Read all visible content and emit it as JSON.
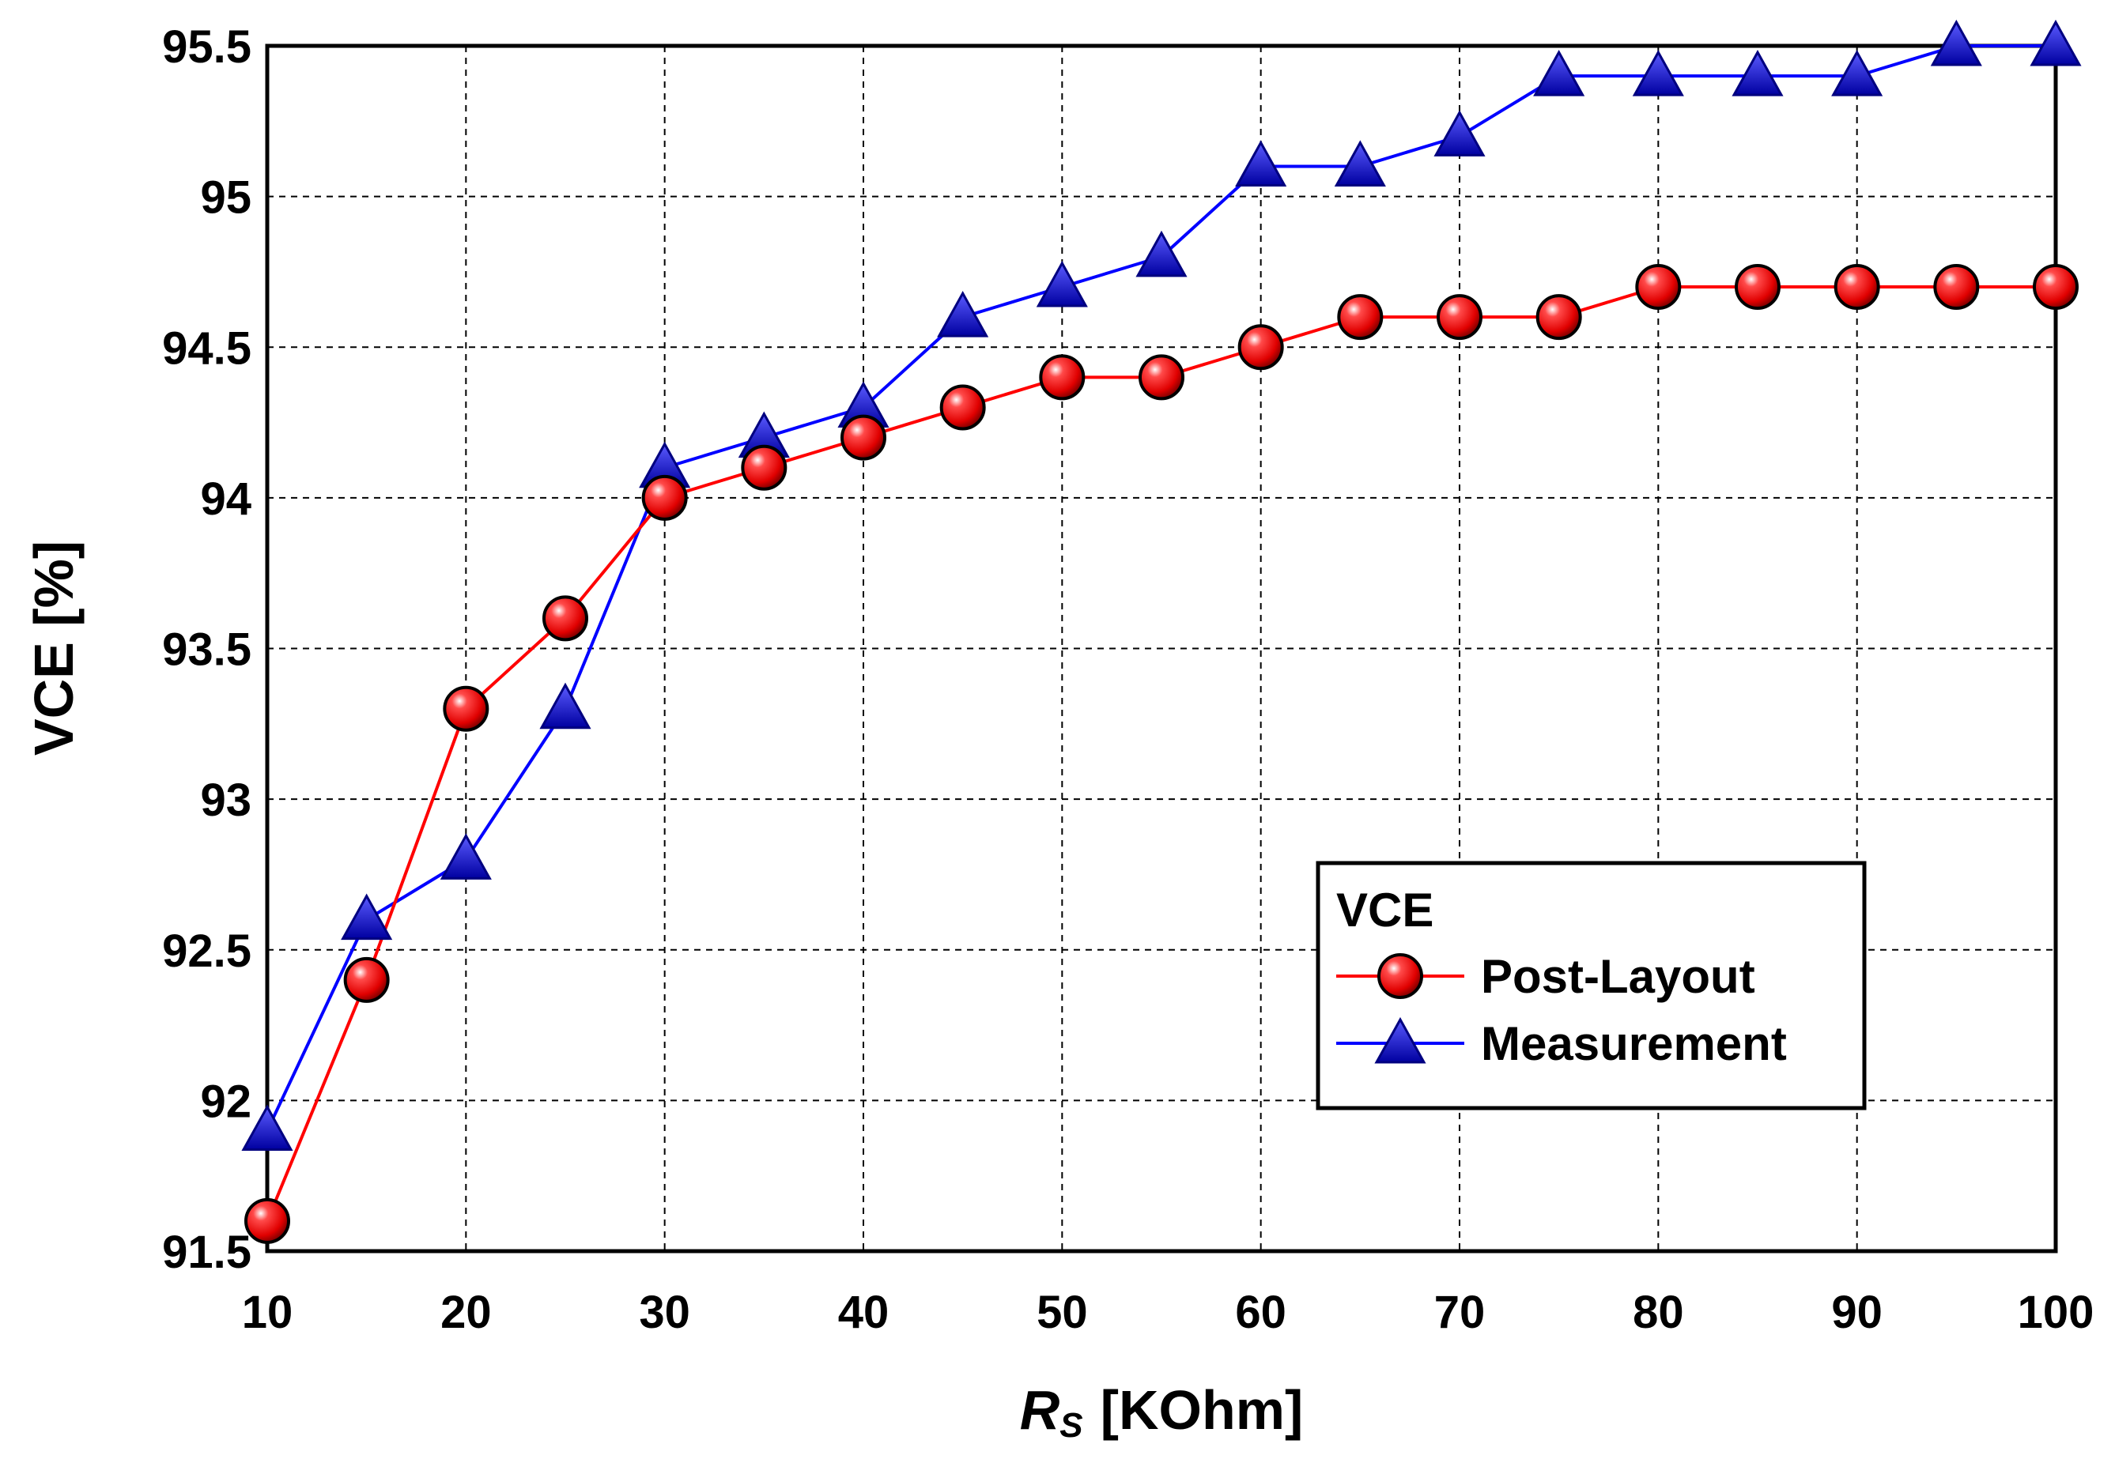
{
  "chart_data": {
    "type": "line",
    "xlabel_symbol": "R",
    "xlabel_subscript": "S",
    "xlabel_unit": "[KOhm]",
    "ylabel": "VCE [%]",
    "xlim": [
      10,
      100
    ],
    "ylim": [
      91.5,
      95.5
    ],
    "grid": true,
    "x_ticks": [
      10,
      20,
      30,
      40,
      50,
      60,
      70,
      80,
      90,
      100
    ],
    "x_tick_labels": [
      "10",
      "20",
      "30",
      "40",
      "50",
      "60",
      "70",
      "80",
      "90",
      "100"
    ],
    "y_ticks": [
      91.5,
      92,
      92.5,
      93,
      93.5,
      94,
      94.5,
      95,
      95.5
    ],
    "y_tick_labels": [
      "91.5",
      "92",
      "92.5",
      "93",
      "93.5",
      "94",
      "94.5",
      "95",
      "95.5"
    ],
    "legend": {
      "title": "VCE",
      "position": "lower-right"
    },
    "series": [
      {
        "name": "Post-Layout",
        "color": "#ff0000",
        "marker": "circle",
        "x": [
          10,
          15,
          20,
          25,
          30,
          35,
          40,
          45,
          50,
          55,
          60,
          65,
          70,
          75,
          80,
          85,
          90,
          95,
          100
        ],
        "values": [
          91.6,
          92.4,
          93.3,
          93.6,
          94.0,
          94.1,
          94.2,
          94.3,
          94.4,
          94.4,
          94.5,
          94.6,
          94.6,
          94.6,
          94.7,
          94.7,
          94.7,
          94.7,
          94.7
        ]
      },
      {
        "name": "Measurement",
        "color": "#0000ff",
        "marker": "triangle",
        "x": [
          10,
          15,
          20,
          25,
          30,
          35,
          40,
          45,
          50,
          55,
          60,
          65,
          70,
          75,
          80,
          85,
          90,
          95,
          100
        ],
        "values": [
          91.9,
          92.6,
          92.8,
          93.3,
          94.1,
          94.2,
          94.3,
          94.6,
          94.7,
          94.8,
          95.1,
          95.1,
          95.2,
          95.4,
          95.4,
          95.4,
          95.4,
          95.5,
          95.5
        ]
      }
    ]
  }
}
